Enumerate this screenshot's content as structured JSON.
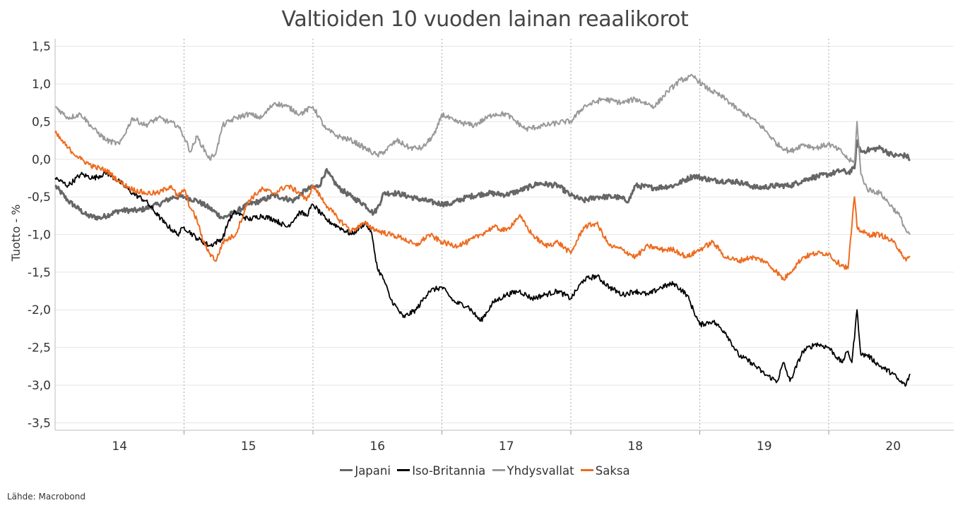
{
  "chart_data": {
    "type": "line",
    "title": "Valtioiden 10 vuoden lainan reaalikorot",
    "ylabel": "Tuotto - %",
    "xlabel": "",
    "ylim": [
      -3.6,
      1.6
    ],
    "xlim": [
      2013.5,
      2020.47
    ],
    "yticks": [
      1.5,
      1.0,
      0.5,
      0.0,
      -0.5,
      -1.0,
      -1.5,
      -2.0,
      -2.5,
      -3.0,
      -3.5
    ],
    "ytick_labels": [
      "1,5",
      "1,0",
      "0,5",
      "0,0",
      "-0,5",
      "-1,0",
      "-1,5",
      "-2,0",
      "-2,5",
      "-3,0",
      "-3,5"
    ],
    "xtick_labels": [
      "14",
      "15",
      "16",
      "17",
      "18",
      "19",
      "20"
    ],
    "xtick_positions": [
      2014.0,
      2015.0,
      2016.0,
      2017.0,
      2018.0,
      2019.0,
      2020.0
    ],
    "year_boundaries": [
      2014.5,
      2015.5,
      2016.5,
      2017.5,
      2018.5,
      2019.5
    ],
    "grid": true,
    "legend_position": "bottom",
    "series": [
      {
        "name": "Japani",
        "color": "#666666",
        "x": [
          2013.5,
          2013.6,
          2013.75,
          2013.85,
          2014.0,
          2014.15,
          2014.3,
          2014.42,
          2014.5,
          2014.6,
          2014.7,
          2014.8,
          2014.9,
          2015.0,
          2015.1,
          2015.2,
          2015.35,
          2015.45,
          2015.55,
          2015.6,
          2015.7,
          2015.8,
          2015.9,
          2015.97,
          2016.0,
          2016.05,
          2016.15,
          2016.3,
          2016.45,
          2016.55,
          2016.7,
          2016.85,
          2017.0,
          2017.1,
          2017.25,
          2017.4,
          2017.5,
          2017.6,
          2017.7,
          2017.85,
          2017.95,
          2018.0,
          2018.15,
          2018.3,
          2018.45,
          2018.6,
          2018.8,
          2018.95,
          2019.1,
          2019.2,
          2019.35,
          2019.5,
          2019.6,
          2019.65,
          2019.7,
          2019.72,
          2019.75,
          2019.8,
          2019.9,
          2020.0,
          2020.1,
          2020.13
        ],
        "y": [
          -0.35,
          -0.55,
          -0.75,
          -0.78,
          -0.68,
          -0.68,
          -0.6,
          -0.5,
          -0.5,
          -0.55,
          -0.65,
          -0.78,
          -0.7,
          -0.6,
          -0.55,
          -0.48,
          -0.55,
          -0.4,
          -0.35,
          -0.15,
          -0.38,
          -0.5,
          -0.6,
          -0.72,
          -0.65,
          -0.45,
          -0.45,
          -0.52,
          -0.58,
          -0.6,
          -0.5,
          -0.45,
          -0.47,
          -0.42,
          -0.32,
          -0.35,
          -0.48,
          -0.55,
          -0.5,
          -0.5,
          -0.55,
          -0.35,
          -0.38,
          -0.35,
          -0.22,
          -0.28,
          -0.3,
          -0.38,
          -0.35,
          -0.35,
          -0.25,
          -0.2,
          -0.15,
          -0.18,
          -0.12,
          0.25,
          0.1,
          0.12,
          0.15,
          0.05,
          0.05,
          0.0
        ]
      },
      {
        "name": "Iso-Britannia",
        "color": "#000000",
        "x": [
          2013.5,
          2013.6,
          2013.7,
          2013.8,
          2013.9,
          2014.0,
          2014.1,
          2014.2,
          2014.3,
          2014.35,
          2014.45,
          2014.5,
          2014.6,
          2014.7,
          2014.8,
          2014.85,
          2014.9,
          2015.0,
          2015.1,
          2015.2,
          2015.3,
          2015.4,
          2015.45,
          2015.5,
          2015.6,
          2015.7,
          2015.8,
          2015.9,
          2015.95,
          2016.0,
          2016.05,
          2016.1,
          2016.2,
          2016.3,
          2016.4,
          2016.5,
          2016.6,
          2016.7,
          2016.8,
          2016.9,
          2017.0,
          2017.1,
          2017.2,
          2017.3,
          2017.4,
          2017.5,
          2017.6,
          2017.7,
          2017.8,
          2017.9,
          2018.0,
          2018.1,
          2018.2,
          2018.3,
          2018.4,
          2018.5,
          2018.6,
          2018.7,
          2018.8,
          2018.9,
          2019.0,
          2019.1,
          2019.15,
          2019.2,
          2019.3,
          2019.4,
          2019.5,
          2019.6,
          2019.65,
          2019.68,
          2019.72,
          2019.75,
          2019.8,
          2019.9,
          2020.0,
          2020.05,
          2020.1,
          2020.13
        ],
        "y": [
          -0.25,
          -0.35,
          -0.2,
          -0.25,
          -0.18,
          -0.3,
          -0.45,
          -0.55,
          -0.75,
          -0.85,
          -1.0,
          -0.9,
          -1.05,
          -1.15,
          -1.05,
          -0.8,
          -0.7,
          -0.8,
          -0.75,
          -0.8,
          -0.9,
          -0.7,
          -0.75,
          -0.6,
          -0.8,
          -0.9,
          -1.0,
          -0.85,
          -0.95,
          -1.45,
          -1.6,
          -1.85,
          -2.1,
          -2.0,
          -1.75,
          -1.7,
          -1.9,
          -1.95,
          -2.15,
          -1.9,
          -1.8,
          -1.75,
          -1.85,
          -1.8,
          -1.75,
          -1.85,
          -1.6,
          -1.55,
          -1.7,
          -1.8,
          -1.75,
          -1.8,
          -1.7,
          -1.65,
          -1.8,
          -2.2,
          -2.15,
          -2.3,
          -2.6,
          -2.7,
          -2.85,
          -2.95,
          -2.7,
          -2.95,
          -2.55,
          -2.45,
          -2.5,
          -2.7,
          -2.55,
          -2.7,
          -2.0,
          -2.6,
          -2.6,
          -2.75,
          -2.85,
          -2.95,
          -3.0,
          -2.85
        ]
      },
      {
        "name": "Yhdysvallat",
        "color": "#999999",
        "x": [
          2013.5,
          2013.6,
          2013.7,
          2013.8,
          2013.9,
          2014.0,
          2014.1,
          2014.2,
          2014.3,
          2014.45,
          2014.5,
          2014.55,
          2014.6,
          2014.7,
          2014.75,
          2014.8,
          2014.9,
          2015.0,
          2015.1,
          2015.2,
          2015.3,
          2015.4,
          2015.5,
          2015.6,
          2015.7,
          2015.8,
          2015.9,
          2016.0,
          2016.05,
          2016.15,
          2016.25,
          2016.35,
          2016.45,
          2016.5,
          2016.6,
          2016.75,
          2016.9,
          2017.0,
          2017.15,
          2017.3,
          2017.45,
          2017.5,
          2017.6,
          2017.75,
          2017.9,
          2018.0,
          2018.15,
          2018.25,
          2018.35,
          2018.45,
          2018.55,
          2018.7,
          2018.8,
          2018.9,
          2019.0,
          2019.1,
          2019.2,
          2019.3,
          2019.4,
          2019.5,
          2019.6,
          2019.65,
          2019.7,
          2019.72,
          2019.75,
          2019.8,
          2019.9,
          2020.0,
          2020.05,
          2020.1,
          2020.13
        ],
        "y": [
          0.7,
          0.55,
          0.6,
          0.4,
          0.25,
          0.2,
          0.55,
          0.45,
          0.55,
          0.45,
          0.3,
          0.1,
          0.3,
          0.0,
          0.1,
          0.45,
          0.55,
          0.6,
          0.55,
          0.75,
          0.7,
          0.6,
          0.7,
          0.4,
          0.3,
          0.25,
          0.15,
          0.05,
          0.1,
          0.25,
          0.15,
          0.15,
          0.35,
          0.6,
          0.5,
          0.45,
          0.6,
          0.6,
          0.4,
          0.45,
          0.5,
          0.5,
          0.7,
          0.8,
          0.75,
          0.8,
          0.7,
          0.9,
          1.05,
          1.1,
          0.95,
          0.8,
          0.65,
          0.55,
          0.4,
          0.2,
          0.1,
          0.2,
          0.15,
          0.2,
          0.1,
          0.0,
          -0.05,
          0.5,
          -0.2,
          -0.4,
          -0.45,
          -0.65,
          -0.75,
          -0.95,
          -1.0
        ]
      },
      {
        "name": "Saksa",
        "color": "#ee6b1f",
        "x": [
          2013.5,
          2013.6,
          2013.7,
          2013.8,
          2013.9,
          2014.0,
          2014.1,
          2014.2,
          2014.3,
          2014.4,
          2014.45,
          2014.5,
          2014.55,
          2014.6,
          2014.65,
          2014.7,
          2014.75,
          2014.8,
          2014.9,
          2015.0,
          2015.1,
          2015.2,
          2015.3,
          2015.4,
          2015.45,
          2015.5,
          2015.6,
          2015.7,
          2015.8,
          2015.9,
          2016.0,
          2016.1,
          2016.2,
          2016.3,
          2016.4,
          2016.5,
          2016.6,
          2016.7,
          2016.8,
          2016.9,
          2017.0,
          2017.1,
          2017.2,
          2017.3,
          2017.4,
          2017.5,
          2017.6,
          2017.7,
          2017.8,
          2017.9,
          2018.0,
          2018.1,
          2018.2,
          2018.3,
          2018.4,
          2018.5,
          2018.6,
          2018.7,
          2018.8,
          2018.9,
          2019.0,
          2019.1,
          2019.15,
          2019.2,
          2019.3,
          2019.4,
          2019.5,
          2019.55,
          2019.6,
          2019.65,
          2019.7,
          2019.72,
          2019.75,
          2019.8,
          2019.9,
          2020.0,
          2020.05,
          2020.1,
          2020.13
        ],
        "y": [
          0.35,
          0.15,
          0.0,
          -0.1,
          -0.15,
          -0.3,
          -0.4,
          -0.45,
          -0.45,
          -0.35,
          -0.5,
          -0.4,
          -0.65,
          -0.8,
          -1.1,
          -1.25,
          -1.35,
          -1.1,
          -1.0,
          -0.55,
          -0.4,
          -0.45,
          -0.35,
          -0.45,
          -0.55,
          -0.35,
          -0.6,
          -0.8,
          -0.95,
          -0.85,
          -0.95,
          -1.0,
          -1.05,
          -1.15,
          -1.0,
          -1.1,
          -1.15,
          -1.1,
          -1.0,
          -0.9,
          -0.95,
          -0.75,
          -1.0,
          -1.15,
          -1.1,
          -1.25,
          -0.9,
          -0.85,
          -1.15,
          -1.2,
          -1.3,
          -1.15,
          -1.2,
          -1.2,
          -1.3,
          -1.2,
          -1.1,
          -1.3,
          -1.35,
          -1.3,
          -1.35,
          -1.5,
          -1.6,
          -1.5,
          -1.3,
          -1.25,
          -1.25,
          -1.35,
          -1.4,
          -1.45,
          -0.5,
          -0.9,
          -0.95,
          -1.0,
          -1.0,
          -1.1,
          -1.2,
          -1.35,
          -1.3
        ]
      }
    ]
  },
  "source_note": "Lähde: Macrobond",
  "legend": [
    {
      "label": "Japani",
      "color": "#666666"
    },
    {
      "label": "Iso-Britannia",
      "color": "#000000"
    },
    {
      "label": "Yhdysvallat",
      "color": "#999999"
    },
    {
      "label": "Saksa",
      "color": "#ee6b1f"
    }
  ]
}
